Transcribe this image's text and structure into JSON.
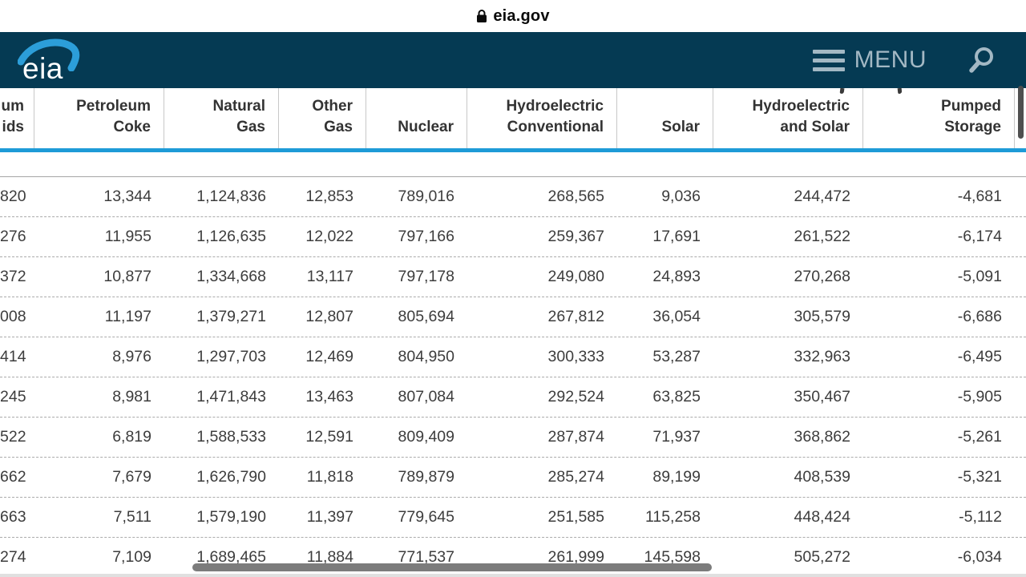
{
  "browser": {
    "url": "eia.gov"
  },
  "nav": {
    "logo_text": "eia",
    "menu_label": "MENU"
  },
  "table": {
    "headers": [
      [
        "um",
        "ids"
      ],
      [
        "Petroleum",
        "Coke"
      ],
      [
        "Natural",
        "Gas"
      ],
      [
        "Other",
        "Gas"
      ],
      [
        "Nuclear"
      ],
      [
        "Hydroelectric",
        "Conventional"
      ],
      [
        "Solar"
      ],
      [
        "Hydroelectric",
        "and Solar"
      ],
      [
        "Pumped",
        "Storage"
      ]
    ],
    "rows": [
      [
        "820",
        "13,344",
        "1,124,836",
        "12,853",
        "789,016",
        "268,565",
        "9,036",
        "244,472",
        "-4,681"
      ],
      [
        "276",
        "11,955",
        "1,126,635",
        "12,022",
        "797,166",
        "259,367",
        "17,691",
        "261,522",
        "-6,174"
      ],
      [
        "372",
        "10,877",
        "1,334,668",
        "13,117",
        "797,178",
        "249,080",
        "24,893",
        "270,268",
        "-5,091"
      ],
      [
        "008",
        "11,197",
        "1,379,271",
        "12,807",
        "805,694",
        "267,812",
        "36,054",
        "305,579",
        "-6,686"
      ],
      [
        "414",
        "8,976",
        "1,297,703",
        "12,469",
        "804,950",
        "300,333",
        "53,287",
        "332,963",
        "-6,495"
      ],
      [
        "245",
        "8,981",
        "1,471,843",
        "13,463",
        "807,084",
        "292,524",
        "63,825",
        "350,467",
        "-5,905"
      ],
      [
        "522",
        "6,819",
        "1,588,533",
        "12,591",
        "809,409",
        "287,874",
        "71,937",
        "368,862",
        "-5,261"
      ],
      [
        "662",
        "7,679",
        "1,626,790",
        "11,818",
        "789,879",
        "285,274",
        "89,199",
        "408,539",
        "-5,321"
      ],
      [
        "663",
        "7,511",
        "1,579,190",
        "11,397",
        "779,645",
        "251,585",
        "115,258",
        "448,424",
        "-5,112"
      ],
      [
        "274",
        "7,109",
        "1,689,465",
        "11,884",
        "771,537",
        "261,999",
        "145,598",
        "505,272",
        "-6,034"
      ]
    ]
  },
  "colors": {
    "nav_bg": "#053a53",
    "nav_fg": "#a3b8c4",
    "accent_blue": "#1e9bd7",
    "logo_swoosh": "#2c9ed9",
    "header_text": "#333333",
    "body_text": "#3d3d3d"
  }
}
